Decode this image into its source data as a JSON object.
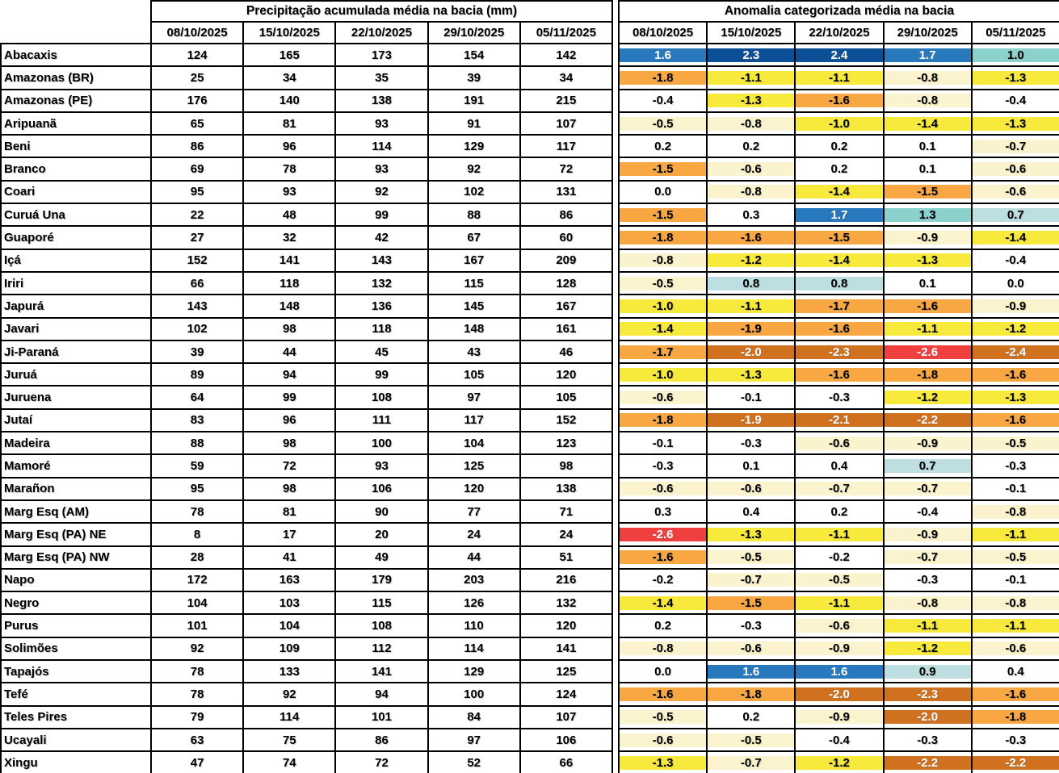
{
  "chart_data": {
    "type": "table",
    "tables": [
      {
        "title": "Precipitação acumulada média na bacia (mm)",
        "columns": [
          "08/10/2025",
          "15/10/2025",
          "22/10/2025",
          "29/10/2025",
          "05/11/2025"
        ]
      },
      {
        "title": "Anomalia categorizada média na bacia",
        "columns": [
          "08/10/2025",
          "15/10/2025",
          "22/10/2025",
          "29/10/2025",
          "05/11/2025"
        ]
      }
    ],
    "palette": {
      "p20": {
        "bg": "#0b4f96",
        "fg": "#ffffff"
      },
      "p15": {
        "bg": "#2878be",
        "fg": "#ffffff"
      },
      "p10": {
        "bg": "#8bd2cc",
        "fg": "#000000"
      },
      "p05": {
        "bg": "#bddfe1",
        "fg": "#000000"
      },
      "zero": {
        "bg": "#ffffff",
        "fg": "#000000"
      },
      "m05": {
        "bg": "#faf3cd",
        "fg": "#000000"
      },
      "m10": {
        "bg": "#f7ea3c",
        "fg": "#000000"
      },
      "m15": {
        "bg": "#f8a743",
        "fg": "#000000"
      },
      "m20": {
        "bg": "#cf711f",
        "fg": "#ffffff"
      },
      "m25": {
        "bg": "#ef3f3e",
        "fg": "#ffffff"
      }
    },
    "basins": [
      {
        "name": "Abacaxis",
        "precip": [
          124,
          165,
          173,
          154,
          142
        ],
        "anom": [
          1.6,
          2.3,
          2.4,
          1.7,
          1.0
        ],
        "cats": [
          "p15",
          "p20",
          "p20",
          "p15",
          "p10"
        ]
      },
      {
        "name": "Amazonas (BR)",
        "precip": [
          25,
          34,
          35,
          39,
          34
        ],
        "anom": [
          -1.8,
          -1.1,
          -1.1,
          -0.8,
          -1.3
        ],
        "cats": [
          "m15",
          "m10",
          "m10",
          "m05",
          "m10"
        ]
      },
      {
        "name": "Amazonas (PE)",
        "precip": [
          176,
          140,
          138,
          191,
          215
        ],
        "anom": [
          -0.4,
          -1.3,
          -1.6,
          -0.8,
          -0.4
        ],
        "cats": [
          "zero",
          "m10",
          "m15",
          "m05",
          "zero"
        ]
      },
      {
        "name": "Aripuanã",
        "precip": [
          65,
          81,
          93,
          91,
          107
        ],
        "anom": [
          -0.5,
          -0.8,
          -1.0,
          -1.4,
          -1.3
        ],
        "cats": [
          "m05",
          "m05",
          "m10",
          "m10",
          "m10"
        ]
      },
      {
        "name": "Beni",
        "precip": [
          86,
          96,
          114,
          129,
          117
        ],
        "anom": [
          0.2,
          0.2,
          0.2,
          0.1,
          -0.7
        ],
        "cats": [
          "zero",
          "zero",
          "zero",
          "zero",
          "m05"
        ]
      },
      {
        "name": "Branco",
        "precip": [
          69,
          78,
          93,
          92,
          72
        ],
        "anom": [
          -1.5,
          -0.6,
          0.2,
          0.1,
          -0.6
        ],
        "cats": [
          "m15",
          "m05",
          "zero",
          "zero",
          "m05"
        ]
      },
      {
        "name": "Coari",
        "precip": [
          95,
          93,
          92,
          102,
          131
        ],
        "anom": [
          0.0,
          -0.8,
          -1.4,
          -1.5,
          -0.6
        ],
        "cats": [
          "zero",
          "m05",
          "m10",
          "m15",
          "m05"
        ]
      },
      {
        "name": "Curuá Una",
        "precip": [
          22,
          48,
          99,
          88,
          86
        ],
        "anom": [
          -1.5,
          0.3,
          1.7,
          1.3,
          0.7
        ],
        "cats": [
          "m15",
          "zero",
          "p15",
          "p10",
          "p05"
        ]
      },
      {
        "name": "Guaporé",
        "precip": [
          27,
          32,
          42,
          67,
          60
        ],
        "anom": [
          -1.8,
          -1.6,
          -1.5,
          -0.9,
          -1.4
        ],
        "cats": [
          "m15",
          "m15",
          "m15",
          "m05",
          "m10"
        ]
      },
      {
        "name": "Içá",
        "precip": [
          152,
          141,
          143,
          167,
          209
        ],
        "anom": [
          -0.8,
          -1.2,
          -1.4,
          -1.3,
          -0.4
        ],
        "cats": [
          "m05",
          "m10",
          "m10",
          "m10",
          "zero"
        ]
      },
      {
        "name": "Iriri",
        "precip": [
          66,
          118,
          132,
          115,
          128
        ],
        "anom": [
          -0.5,
          0.8,
          0.8,
          0.1,
          0.0
        ],
        "cats": [
          "m05",
          "p05",
          "p05",
          "zero",
          "zero"
        ]
      },
      {
        "name": "Japurá",
        "precip": [
          143,
          148,
          136,
          145,
          167
        ],
        "anom": [
          -1.0,
          -1.1,
          -1.7,
          -1.6,
          -0.9
        ],
        "cats": [
          "m10",
          "m10",
          "m15",
          "m15",
          "m05"
        ]
      },
      {
        "name": "Javari",
        "precip": [
          102,
          98,
          118,
          148,
          161
        ],
        "anom": [
          -1.4,
          -1.9,
          -1.6,
          -1.1,
          -1.2
        ],
        "cats": [
          "m10",
          "m15",
          "m15",
          "m10",
          "m10"
        ]
      },
      {
        "name": "Ji-Paraná",
        "precip": [
          39,
          44,
          45,
          43,
          46
        ],
        "anom": [
          -1.7,
          -2.0,
          -2.3,
          -2.6,
          -2.4
        ],
        "cats": [
          "m15",
          "m20",
          "m20",
          "m25",
          "m20"
        ]
      },
      {
        "name": "Juruá",
        "precip": [
          89,
          94,
          99,
          105,
          120
        ],
        "anom": [
          -1.0,
          -1.3,
          -1.6,
          -1.8,
          -1.6
        ],
        "cats": [
          "m10",
          "m10",
          "m15",
          "m15",
          "m15"
        ]
      },
      {
        "name": "Juruena",
        "precip": [
          64,
          99,
          108,
          97,
          105
        ],
        "anom": [
          -0.6,
          -0.1,
          -0.3,
          -1.2,
          -1.3
        ],
        "cats": [
          "m05",
          "zero",
          "zero",
          "m10",
          "m10"
        ]
      },
      {
        "name": "Jutaí",
        "precip": [
          83,
          96,
          111,
          117,
          152
        ],
        "anom": [
          -1.8,
          -1.9,
          -2.1,
          -2.2,
          -1.6
        ],
        "cats": [
          "m15",
          "m20",
          "m20",
          "m20",
          "m15"
        ]
      },
      {
        "name": "Madeira",
        "precip": [
          88,
          98,
          100,
          104,
          123
        ],
        "anom": [
          -0.1,
          -0.3,
          -0.6,
          -0.9,
          -0.5
        ],
        "cats": [
          "zero",
          "zero",
          "m05",
          "m05",
          "m05"
        ]
      },
      {
        "name": "Mamoré",
        "precip": [
          59,
          72,
          93,
          125,
          98
        ],
        "anom": [
          -0.3,
          0.1,
          0.4,
          0.7,
          -0.3
        ],
        "cats": [
          "zero",
          "zero",
          "zero",
          "p05",
          "zero"
        ]
      },
      {
        "name": "Marañon",
        "precip": [
          95,
          98,
          106,
          120,
          138
        ],
        "anom": [
          -0.6,
          -0.6,
          -0.7,
          -0.7,
          -0.1
        ],
        "cats": [
          "m05",
          "m05",
          "m05",
          "m05",
          "zero"
        ]
      },
      {
        "name": "Marg Esq (AM)",
        "precip": [
          78,
          81,
          90,
          77,
          71
        ],
        "anom": [
          0.3,
          0.4,
          0.2,
          -0.4,
          -0.8
        ],
        "cats": [
          "zero",
          "zero",
          "zero",
          "zero",
          "m05"
        ]
      },
      {
        "name": "Marg Esq (PA) NE",
        "precip": [
          8,
          17,
          20,
          24,
          24
        ],
        "anom": [
          -2.6,
          -1.3,
          -1.1,
          -0.9,
          -1.1
        ],
        "cats": [
          "m25",
          "m10",
          "m10",
          "m05",
          "m10"
        ]
      },
      {
        "name": "Marg Esq (PA) NW",
        "precip": [
          28,
          41,
          49,
          44,
          51
        ],
        "anom": [
          -1.6,
          -0.5,
          -0.2,
          -0.7,
          -0.5
        ],
        "cats": [
          "m15",
          "m05",
          "zero",
          "m05",
          "m05"
        ]
      },
      {
        "name": "Napo",
        "precip": [
          172,
          163,
          179,
          203,
          216
        ],
        "anom": [
          -0.2,
          -0.7,
          -0.5,
          -0.3,
          -0.1
        ],
        "cats": [
          "zero",
          "m05",
          "m05",
          "zero",
          "zero"
        ]
      },
      {
        "name": "Negro",
        "precip": [
          104,
          103,
          115,
          126,
          132
        ],
        "anom": [
          -1.4,
          -1.5,
          -1.1,
          -0.8,
          -0.8
        ],
        "cats": [
          "m10",
          "m15",
          "m10",
          "m05",
          "m05"
        ]
      },
      {
        "name": "Purus",
        "precip": [
          101,
          104,
          108,
          110,
          120
        ],
        "anom": [
          0.2,
          -0.3,
          -0.6,
          -1.1,
          -1.1
        ],
        "cats": [
          "zero",
          "zero",
          "m05",
          "m10",
          "m10"
        ]
      },
      {
        "name": "Solimões",
        "precip": [
          92,
          109,
          112,
          114,
          141
        ],
        "anom": [
          -0.8,
          -0.6,
          -0.9,
          -1.2,
          -0.6
        ],
        "cats": [
          "m05",
          "m05",
          "m05",
          "m10",
          "m05"
        ]
      },
      {
        "name": "Tapajós",
        "precip": [
          78,
          133,
          141,
          129,
          125
        ],
        "anom": [
          0.0,
          1.6,
          1.6,
          0.9,
          0.4
        ],
        "cats": [
          "zero",
          "p15",
          "p15",
          "p05",
          "zero"
        ]
      },
      {
        "name": "Tefé",
        "precip": [
          78,
          92,
          94,
          100,
          124
        ],
        "anom": [
          -1.6,
          -1.8,
          -2.0,
          -2.3,
          -1.6
        ],
        "cats": [
          "m15",
          "m15",
          "m20",
          "m20",
          "m15"
        ]
      },
      {
        "name": "Teles Pires",
        "precip": [
          79,
          114,
          101,
          84,
          107
        ],
        "anom": [
          -0.5,
          0.2,
          -0.9,
          -2.0,
          -1.8
        ],
        "cats": [
          "m05",
          "zero",
          "m05",
          "m20",
          "m15"
        ]
      },
      {
        "name": "Ucayali",
        "precip": [
          63,
          75,
          86,
          97,
          106
        ],
        "anom": [
          -0.6,
          -0.5,
          -0.4,
          -0.3,
          -0.3
        ],
        "cats": [
          "m05",
          "m05",
          "zero",
          "zero",
          "zero"
        ]
      },
      {
        "name": "Xingu",
        "precip": [
          47,
          74,
          72,
          52,
          66
        ],
        "anom": [
          -1.3,
          -0.7,
          -1.2,
          -2.2,
          -2.2
        ],
        "cats": [
          "m10",
          "m05",
          "m10",
          "m20",
          "m20"
        ]
      }
    ]
  }
}
